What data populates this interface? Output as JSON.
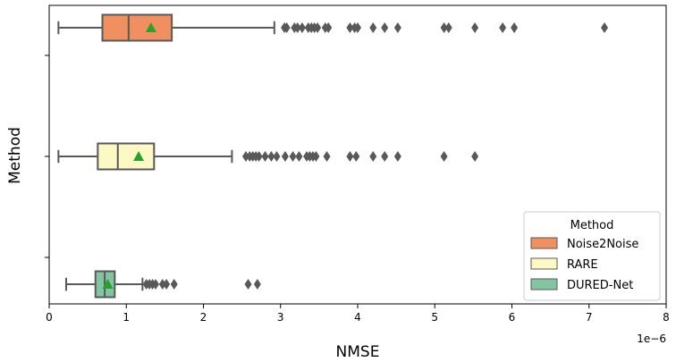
{
  "chart_data": {
    "type": "boxplot",
    "orientation": "horizontal",
    "title": "",
    "xlabel": "NMSE",
    "ylabel": "Method",
    "x_scale_note": "1e−6",
    "xlim": [
      0,
      8
    ],
    "xticks": [
      "0",
      "1",
      "2",
      "3",
      "4",
      "5",
      "6",
      "7",
      "8"
    ],
    "grid": false,
    "legend": {
      "title": "Method",
      "placement": "lower-right",
      "entries": [
        "Noise2Noise",
        "RARE",
        "DURED-Net"
      ]
    },
    "series": [
      {
        "name": "Noise2Noise",
        "color": "#f08f5f",
        "whisker_low": 0.12,
        "q1": 0.69,
        "median": 1.03,
        "q3": 1.59,
        "whisker_high": 2.92,
        "mean": 1.32,
        "outliers": [
          3.05,
          3.08,
          3.18,
          3.22,
          3.28,
          3.36,
          3.4,
          3.44,
          3.48,
          3.58,
          3.62,
          3.9,
          3.96,
          4.0,
          4.2,
          4.35,
          4.52,
          5.12,
          5.18,
          5.52,
          5.88,
          6.03,
          7.2
        ]
      },
      {
        "name": "RARE",
        "color": "#fdf9c4",
        "whisker_low": 0.12,
        "q1": 0.63,
        "median": 0.89,
        "q3": 1.36,
        "whisker_high": 2.37,
        "mean": 1.16,
        "outliers": [
          2.55,
          2.6,
          2.64,
          2.68,
          2.72,
          2.8,
          2.88,
          2.95,
          3.06,
          3.16,
          3.24,
          3.34,
          3.38,
          3.42,
          3.46,
          3.6,
          3.9,
          3.98,
          4.2,
          4.35,
          4.52,
          5.12,
          5.52
        ]
      },
      {
        "name": "DURED-Net",
        "color": "#83c5a3",
        "whisker_low": 0.22,
        "q1": 0.6,
        "median": 0.72,
        "q3": 0.85,
        "whisker_high": 1.21,
        "mean": 0.76,
        "outliers": [
          1.26,
          1.3,
          1.34,
          1.38,
          1.47,
          1.52,
          1.62,
          2.58,
          2.7
        ]
      }
    ]
  }
}
